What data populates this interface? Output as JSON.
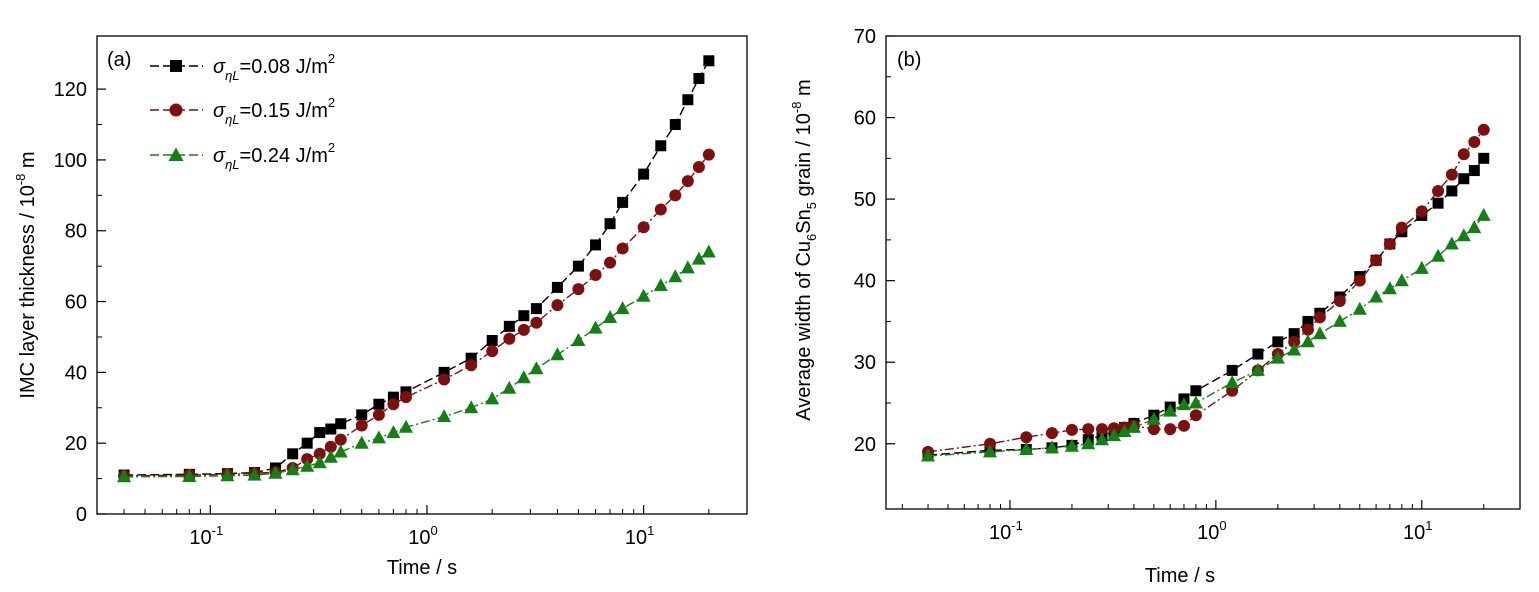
{
  "colors": {
    "s1": "#000000",
    "s2": "#7f0f0f",
    "s3": "#138013"
  },
  "legend": {
    "symbol": "σ",
    "subscript": "ηL",
    "items": [
      {
        "value": "=0.08 J/m",
        "sup": "2"
      },
      {
        "value": "=0.15 J/m",
        "sup": "2"
      },
      {
        "value": "=0.24 J/m",
        "sup": "2"
      }
    ]
  },
  "chart_data": [
    {
      "type": "line",
      "panel_label": "(a)",
      "xscale": "log",
      "xlim": [
        0.03,
        30
      ],
      "ylim": [
        0,
        135
      ],
      "xlabel": "Time / s",
      "ylabel": {
        "main": "IMC layer thickness / 10",
        "sup": "-8",
        "tail": " m"
      },
      "xticks": [
        {
          "base": "10",
          "exp": "-1",
          "value": 0.1
        },
        {
          "base": "10",
          "exp": "0",
          "value": 1
        },
        {
          "base": "10",
          "exp": "1",
          "value": 10
        }
      ],
      "yticks": [
        "0",
        "20",
        "40",
        "60",
        "80",
        "100",
        "120"
      ],
      "series": [
        {
          "marker": "square",
          "color": "#000000",
          "x": [
            0.04,
            0.08,
            0.12,
            0.16,
            0.2,
            0.24,
            0.28,
            0.32,
            0.36,
            0.4,
            0.5,
            0.6,
            0.7,
            0.8,
            1.2,
            1.6,
            2.0,
            2.4,
            2.8,
            3.2,
            4,
            5,
            6,
            7,
            8,
            10,
            12,
            14,
            16,
            18,
            20
          ],
          "y": [
            11,
            11.2,
            11.4,
            11.7,
            13,
            17,
            20,
            23,
            24,
            25.5,
            28,
            31,
            33,
            34.5,
            40,
            44,
            49,
            53,
            56,
            58,
            64,
            70,
            76,
            82,
            88,
            96,
            104,
            110,
            117,
            123,
            128
          ]
        },
        {
          "marker": "circle",
          "color": "#7f0f0f",
          "x": [
            0.04,
            0.08,
            0.12,
            0.16,
            0.2,
            0.24,
            0.28,
            0.32,
            0.36,
            0.4,
            0.5,
            0.6,
            0.7,
            0.8,
            1.2,
            1.6,
            2.0,
            2.4,
            2.8,
            3.2,
            4,
            5,
            6,
            7,
            8,
            10,
            12,
            14,
            16,
            18,
            20
          ],
          "y": [
            10.8,
            11,
            11.2,
            11.5,
            11.8,
            13,
            15.5,
            17,
            19,
            21,
            25,
            28,
            31,
            33,
            38,
            42,
            46,
            49.5,
            52,
            54,
            59,
            63.5,
            67.5,
            71,
            75,
            81,
            86,
            90,
            94,
            98,
            101.5
          ]
        },
        {
          "marker": "triangle",
          "color": "#138013",
          "x": [
            0.04,
            0.08,
            0.12,
            0.16,
            0.2,
            0.24,
            0.28,
            0.32,
            0.36,
            0.4,
            0.5,
            0.6,
            0.7,
            0.8,
            1.2,
            1.6,
            2.0,
            2.4,
            2.8,
            3.2,
            4,
            5,
            6,
            7,
            8,
            10,
            12,
            14,
            16,
            18,
            20
          ],
          "y": [
            10.5,
            10.6,
            10.8,
            11,
            11.5,
            12.5,
            13.5,
            14.5,
            16,
            17.5,
            20,
            21.5,
            23,
            24.5,
            27.5,
            30,
            32.5,
            35.5,
            38.5,
            41,
            45,
            49,
            52.5,
            55.5,
            58,
            61.5,
            64.5,
            67,
            69.5,
            72,
            74
          ]
        }
      ]
    },
    {
      "type": "line",
      "panel_label": "(b)",
      "xscale": "log",
      "xlim": [
        0.025,
        30
      ],
      "ylim": [
        12,
        70
      ],
      "xlabel": "Time / s",
      "ylabel": {
        "main": "Average width of Cu",
        "sub1": "6",
        "mid": "Sn",
        "sub2": "5",
        "after": " grain / 10",
        "sup": "-8",
        "tail": " m"
      },
      "xticks": [
        {
          "base": "10",
          "exp": "-1",
          "value": 0.1
        },
        {
          "base": "10",
          "exp": "0",
          "value": 1
        },
        {
          "base": "10",
          "exp": "1",
          "value": 10
        }
      ],
      "yticks": [
        "20",
        "30",
        "40",
        "50",
        "60",
        "70"
      ],
      "series": [
        {
          "marker": "square",
          "color": "#000000",
          "x": [
            0.04,
            0.08,
            0.12,
            0.16,
            0.2,
            0.24,
            0.28,
            0.32,
            0.36,
            0.4,
            0.5,
            0.6,
            0.7,
            0.8,
            1.2,
            1.6,
            2.0,
            2.4,
            2.8,
            3.2,
            4,
            5,
            6,
            7,
            8,
            10,
            12,
            14,
            16,
            18,
            20
          ],
          "y": [
            18.6,
            19.2,
            19.3,
            19.5,
            19.8,
            20.5,
            21,
            21.5,
            22,
            22.5,
            23.5,
            24.5,
            25.5,
            26.5,
            29,
            31,
            32.5,
            33.5,
            35,
            36,
            38,
            40.5,
            42.5,
            44.5,
            46,
            48,
            49.5,
            51,
            52.5,
            53.5,
            55
          ]
        },
        {
          "marker": "circle",
          "color": "#7f0f0f",
          "x": [
            0.04,
            0.08,
            0.12,
            0.16,
            0.2,
            0.24,
            0.28,
            0.32,
            0.36,
            0.4,
            0.5,
            0.6,
            0.7,
            0.8,
            1.2,
            1.6,
            2.0,
            2.4,
            2.8,
            3.2,
            4,
            5,
            6,
            7,
            8,
            10,
            12,
            14,
            16,
            18,
            20
          ],
          "y": [
            19,
            20,
            20.8,
            21.3,
            21.7,
            21.8,
            21.8,
            21.9,
            22,
            22.2,
            21.8,
            21.8,
            22.2,
            23.5,
            26.5,
            29,
            31,
            32.5,
            34,
            35.5,
            37.5,
            40,
            42.5,
            44.5,
            46.5,
            48.5,
            51,
            53,
            55.5,
            57,
            58.5
          ]
        },
        {
          "marker": "triangle",
          "color": "#138013",
          "x": [
            0.04,
            0.08,
            0.12,
            0.16,
            0.2,
            0.24,
            0.28,
            0.32,
            0.36,
            0.4,
            0.5,
            0.6,
            0.7,
            0.8,
            1.2,
            1.6,
            2.0,
            2.4,
            2.8,
            3.2,
            4,
            5,
            6,
            7,
            8,
            10,
            12,
            14,
            16,
            18,
            20
          ],
          "y": [
            18.5,
            19,
            19.3,
            19.5,
            19.7,
            20,
            20.5,
            21,
            21.5,
            22,
            23,
            24,
            24.8,
            25,
            27.5,
            29,
            30.5,
            31.5,
            32.5,
            33.5,
            35,
            36.5,
            38,
            39,
            40,
            41.5,
            43,
            44.5,
            45.5,
            46.5,
            48
          ]
        }
      ]
    }
  ]
}
